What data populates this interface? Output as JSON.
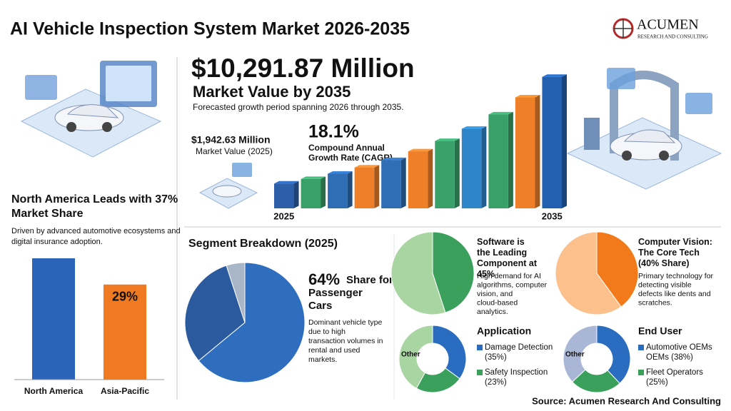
{
  "header": {
    "title": "AI Vehicle Inspection System Market 2026-2035",
    "logo_name": "ACUMEN",
    "logo_tagline": "RESEARCH AND CONSULTING"
  },
  "chart_data": [
    {
      "type": "bar",
      "title": "$10,291.87 Million",
      "subtitle": "Market Value by 2035",
      "note": "Forecasted growth period spanning 2026 through 2035.",
      "start_value": "$1,942.63 Million",
      "start_label": "Market Value (2025)",
      "cagr": "18.1%",
      "cagr_label": "Compound Annual Growth Rate (CAGR)",
      "categories": [
        "2025",
        null,
        null,
        null,
        null,
        null,
        null,
        null,
        null,
        null,
        "2035"
      ],
      "values": [
        1943,
        2294,
        2710,
        3200,
        3779,
        4463,
        5271,
        6225,
        7352,
        8683,
        10292
      ],
      "colors": [
        "#2d5fa8",
        "#3aa06a",
        "#2f6db5",
        "#f07f2a",
        "#2f6db5",
        "#f07f2a",
        "#3aa06a",
        "#2f85c9",
        "#3aa06a",
        "#f07f2a",
        "#2460b0"
      ],
      "ylim": [
        0,
        10500
      ]
    },
    {
      "type": "bar",
      "title": "North America Leads with 37% Market Share",
      "subtitle": "Driven by advanced automotive ecosystems and digital insurance adoption.",
      "categories": [
        "North America",
        "Asia-Pacific"
      ],
      "values": [
        37,
        29
      ],
      "value_labels": [
        null,
        "29%"
      ],
      "colors": [
        "#2a63b8",
        "#f07a22"
      ],
      "ylim": [
        0,
        37
      ]
    },
    {
      "type": "pie",
      "title": "Segment Breakdown (2025)",
      "values": [
        64,
        31,
        5
      ],
      "value_labels": [
        "64%",
        null,
        null
      ],
      "caption": "Share for Passenger Cars",
      "description": "Dominant vehicle type due to high transaction volumes in rental and used markets.",
      "colors": [
        "#2f6ebf",
        "#2b5a9e",
        "#a9b6c8"
      ]
    },
    {
      "type": "pie",
      "title": "Software is the Leading Component at 45%",
      "description": "High demand for AI algorithms, computer vision, and cloud-based analytics.",
      "values": [
        45,
        55
      ],
      "colors": [
        "#3aa05c",
        "#a8d5a2"
      ]
    },
    {
      "type": "pie",
      "title": "Computer Vision: The Core Tech (40% Share)",
      "description": "Primary technology for detecting visible defects like dents and scratches.",
      "values": [
        40,
        60
      ],
      "colors": [
        "#f27a1a",
        "#fbc08c"
      ]
    },
    {
      "type": "donut",
      "title": "Application",
      "categories": [
        "Damage Detection (35%)",
        "Safety Inspection (23%)",
        "Other"
      ],
      "values": [
        35,
        23,
        42
      ],
      "colors": [
        "#2a6cc0",
        "#3aa05c",
        "#a8d5a2"
      ]
    },
    {
      "type": "donut",
      "title": "End User",
      "categories": [
        "Automotive OEMs OEMs (38%)",
        "Fleet Operators (25%)",
        "Other"
      ],
      "values": [
        38,
        25,
        37
      ],
      "colors": [
        "#2a6cc0",
        "#3aa05c",
        "#a9b6d6"
      ]
    }
  ],
  "source": "Source: Acumen Research And Consulting"
}
